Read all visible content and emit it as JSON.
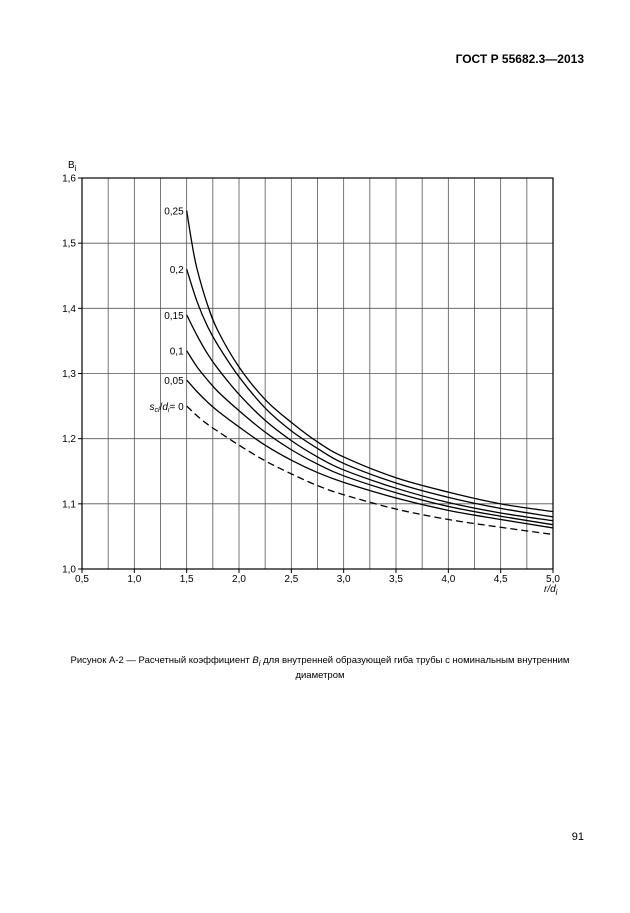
{
  "header": {
    "doc_id": "ГОСТ Р 55682.3—2013"
  },
  "chart_data": {
    "type": "line",
    "xlabel": "r/d",
    "xlabel_sub": "i",
    "ylabel": "B",
    "ylabel_sub": "i",
    "xlim": [
      0.5,
      5.0
    ],
    "ylim": [
      1.0,
      1.6
    ],
    "x_ticks": [
      {
        "v": 0.5,
        "label": "0,5"
      },
      {
        "v": 1.0,
        "label": "1,0"
      },
      {
        "v": 1.5,
        "label": "1,5"
      },
      {
        "v": 2.0,
        "label": "2,0"
      },
      {
        "v": 2.5,
        "label": "2,5"
      },
      {
        "v": 3.0,
        "label": "3,0"
      },
      {
        "v": 3.5,
        "label": "3,5"
      },
      {
        "v": 4.0,
        "label": "4,0"
      },
      {
        "v": 4.5,
        "label": "4,5"
      },
      {
        "v": 5.0,
        "label": "5,0"
      }
    ],
    "y_ticks": [
      {
        "v": 1.0,
        "label": "1,0"
      },
      {
        "v": 1.1,
        "label": "1,1"
      },
      {
        "v": 1.2,
        "label": "1,2"
      },
      {
        "v": 1.3,
        "label": "1,3"
      },
      {
        "v": 1.4,
        "label": "1,4"
      },
      {
        "v": 1.5,
        "label": "1,5"
      },
      {
        "v": 1.6,
        "label": "1,6"
      }
    ],
    "x_grid_step": 0.25,
    "y_grid_step": 0.1,
    "grid": true,
    "series": [
      {
        "name": "0,25",
        "style": "solid",
        "x": [
          1.5,
          1.55,
          1.6,
          1.7,
          1.8,
          2.0,
          2.25,
          2.5,
          2.75,
          3.0,
          3.5,
          4.0,
          4.5,
          5.0
        ],
        "y": [
          1.55,
          1.5,
          1.46,
          1.405,
          1.365,
          1.31,
          1.26,
          1.225,
          1.195,
          1.172,
          1.14,
          1.118,
          1.1,
          1.088
        ]
      },
      {
        "name": "0,2",
        "style": "solid",
        "x": [
          1.5,
          1.6,
          1.7,
          1.8,
          2.0,
          2.25,
          2.5,
          2.75,
          3.0,
          3.5,
          4.0,
          4.5,
          5.0
        ],
        "y": [
          1.46,
          1.41,
          1.372,
          1.343,
          1.295,
          1.247,
          1.212,
          1.185,
          1.162,
          1.132,
          1.11,
          1.093,
          1.08
        ]
      },
      {
        "name": "0,15",
        "style": "solid",
        "x": [
          1.5,
          1.6,
          1.7,
          1.8,
          2.0,
          2.25,
          2.5,
          2.75,
          3.0,
          3.5,
          4.0,
          4.5,
          5.0
        ],
        "y": [
          1.39,
          1.358,
          1.33,
          1.307,
          1.268,
          1.228,
          1.197,
          1.172,
          1.152,
          1.124,
          1.102,
          1.086,
          1.074
        ]
      },
      {
        "name": "0,1",
        "style": "solid",
        "x": [
          1.5,
          1.6,
          1.7,
          1.8,
          2.0,
          2.25,
          2.5,
          2.75,
          3.0,
          3.5,
          4.0,
          4.5,
          5.0
        ],
        "y": [
          1.335,
          1.31,
          1.29,
          1.272,
          1.243,
          1.21,
          1.183,
          1.161,
          1.143,
          1.117,
          1.096,
          1.081,
          1.068
        ]
      },
      {
        "name": "0,05",
        "style": "solid",
        "x": [
          1.5,
          1.6,
          1.7,
          1.8,
          2.0,
          2.25,
          2.5,
          2.75,
          3.0,
          3.5,
          4.0,
          4.5,
          5.0
        ],
        "y": [
          1.29,
          1.272,
          1.256,
          1.242,
          1.218,
          1.19,
          1.167,
          1.148,
          1.133,
          1.109,
          1.09,
          1.076,
          1.063
        ]
      },
      {
        "name": "s/d = 0",
        "style": "dashed",
        "x": [
          1.5,
          1.6,
          1.7,
          1.8,
          2.0,
          2.25,
          2.5,
          2.75,
          3.0,
          3.5,
          4.0,
          4.5,
          5.0
        ],
        "y": [
          1.25,
          1.235,
          1.222,
          1.211,
          1.19,
          1.166,
          1.146,
          1.128,
          1.114,
          1.092,
          1.076,
          1.064,
          1.053
        ]
      }
    ],
    "curve_labels": [
      "0,25",
      "0,2",
      "0,15",
      "0,1",
      "0,05"
    ],
    "base_label": {
      "s": "s",
      "s_sub": "cl",
      "slash": "/",
      "d": "d",
      "d_sub": "i",
      "eq": "= 0"
    }
  },
  "caption": {
    "line1_pre": "Рисунок А-2 — Расчетный коэффициент ",
    "line1_b": "B",
    "line1_b_sub": "i",
    "line1_post": " для внутренней образующей гиба трубы с номинальным внутренним",
    "line2": "диаметром"
  },
  "page_number": "91"
}
